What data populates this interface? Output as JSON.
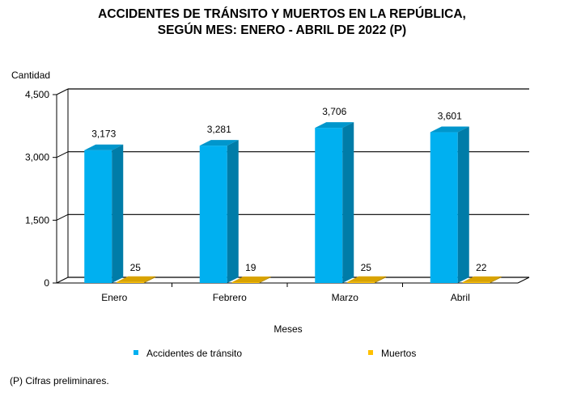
{
  "chart_data": {
    "type": "bar",
    "title": "ACCIDENTES DE TRÁNSITO Y MUERTOS EN LA REPÚBLICA,",
    "subtitle": "SEGÚN MES: ENERO - ABRIL DE 2022 (P)",
    "ylabel": "Cantidad",
    "xlabel": "Meses",
    "categories": [
      "Enero",
      "Febrero",
      "Marzo",
      "Abril"
    ],
    "series": [
      {
        "name": "Accidentes de tránsito",
        "values": [
          3173,
          3281,
          3706,
          3601
        ],
        "color": "#00B0F0",
        "side_color": "#007CA8",
        "top_color": "#0096CC"
      },
      {
        "name": "Muertos",
        "values": [
          25,
          19,
          25,
          22
        ],
        "color": "#FFC000",
        "side_color": "#B38600",
        "top_color": "#D9A300"
      }
    ],
    "value_labels": [
      [
        "3,173",
        "3,281",
        "3,706",
        "3,601"
      ],
      [
        "25",
        "19",
        "25",
        "22"
      ]
    ],
    "yticks": [
      "0",
      "1,500",
      "3,000",
      "4,500"
    ],
    "ytick_values": [
      0,
      1500,
      3000,
      4500
    ],
    "ylim": [
      0,
      4500
    ],
    "grid": true,
    "legend_position": "bottom"
  },
  "footnote": "(P) Cifras preliminares."
}
